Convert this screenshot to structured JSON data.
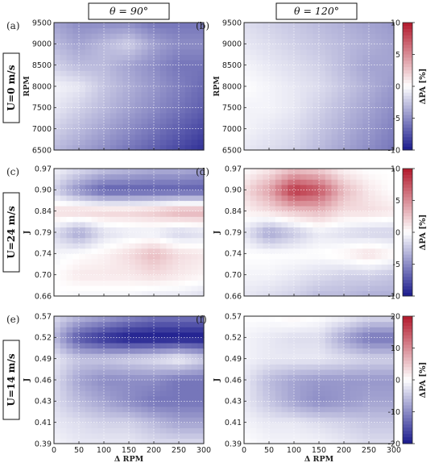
{
  "column_headers": [
    "θ = 90°",
    "θ = 120°"
  ],
  "row_labels": [
    "U=0 m/s",
    "U=24 m/s",
    "U=14 m/s"
  ],
  "xlabel": "Δ RPM",
  "colorbar_label": "ΔPA [%]",
  "colors": {
    "positive": "#b2182b",
    "negative": "#1a1a8c",
    "neutral": "#ffffff"
  },
  "chart_data": [
    {
      "type": "heatmap",
      "panel": "(a)",
      "ylabel": "RPM",
      "x": [
        0,
        50,
        100,
        150,
        200,
        250,
        300
      ],
      "x_ticks": [
        "0",
        "50",
        "100",
        "150",
        "200",
        "250",
        "300"
      ],
      "y": [
        6500,
        7000,
        7500,
        8000,
        8500,
        9000,
        9500
      ],
      "y_ticks": [
        "6500",
        "7000",
        "7500",
        "8000",
        "8500",
        "9000",
        "9500"
      ],
      "colorbar": {
        "min": -10,
        "max": 10,
        "ticks": [
          "10",
          "5",
          "0",
          "-5",
          "-10"
        ],
        "tick_values": [
          10,
          5,
          0,
          -5,
          -10
        ]
      },
      "z": [
        [
          -3,
          -4,
          -5,
          -6,
          -7,
          -8,
          -9
        ],
        [
          -2,
          -3,
          -4,
          -5,
          -6,
          -7,
          -8
        ],
        [
          -1,
          -2,
          -3,
          -4,
          -5,
          -6,
          -7
        ],
        [
          -0.5,
          -1,
          -2.5,
          -3.5,
          -4.5,
          -5.5,
          -6.5
        ],
        [
          -2,
          -3,
          -3,
          -4,
          -5,
          -6,
          -6
        ],
        [
          -3,
          -4,
          -3,
          -2,
          -4,
          -5,
          -5
        ],
        [
          -4,
          -5,
          -5,
          -5,
          -6,
          -6,
          -6
        ]
      ]
    },
    {
      "type": "heatmap",
      "panel": "(b)",
      "ylabel": "RPM",
      "x": [
        0,
        50,
        100,
        150,
        200,
        250,
        300
      ],
      "x_ticks": [
        "0",
        "50",
        "100",
        "150",
        "200",
        "250",
        "300"
      ],
      "y": [
        6500,
        7000,
        7500,
        8000,
        8500,
        9000,
        9500
      ],
      "y_ticks": [
        "6500",
        "7000",
        "7500",
        "8000",
        "8500",
        "9000",
        "9500"
      ],
      "colorbar": {
        "min": -10,
        "max": 10,
        "ticks": [
          "10",
          "5",
          "0",
          "-5",
          "-10"
        ],
        "tick_values": [
          10,
          5,
          0,
          -5,
          -10
        ]
      },
      "z": [
        [
          -1,
          -1.5,
          -2,
          -3,
          -4,
          -5,
          -6
        ],
        [
          -0.5,
          -1,
          -1.5,
          -2.5,
          -3.5,
          -4.5,
          -5.5
        ],
        [
          -0.5,
          -0.5,
          -1,
          -2,
          -3,
          -4,
          -5
        ],
        [
          0,
          -0.5,
          -1,
          -1.5,
          -2.5,
          -3.5,
          -4.5
        ],
        [
          -0.5,
          -1,
          -1.5,
          -2,
          -3,
          -4,
          -4
        ],
        [
          -1,
          -1.5,
          -2,
          -2.5,
          -3,
          -3.5,
          -4
        ],
        [
          -1.5,
          -2,
          -2.5,
          -3,
          -3.5,
          -4,
          -4.5
        ]
      ]
    },
    {
      "type": "heatmap",
      "panel": "(c)",
      "ylabel": "J",
      "x": [
        0,
        50,
        100,
        150,
        200,
        250,
        300
      ],
      "x_ticks": [
        "0",
        "50",
        "100",
        "150",
        "200",
        "250",
        "300"
      ],
      "y": [
        0.66,
        0.7,
        0.74,
        0.79,
        0.84,
        0.9,
        0.97
      ],
      "y_ticks": [
        "0.66",
        "0.70",
        "0.74",
        "0.79",
        "0.84",
        "0.90",
        "0.97"
      ],
      "colorbar": {
        "min": -10,
        "max": 10,
        "ticks": [
          "10",
          "5",
          "0",
          "-5",
          "-10"
        ],
        "tick_values": [
          10,
          5,
          0,
          -5,
          -10
        ]
      },
      "z": [
        [
          0,
          -0.5,
          -0.5,
          -0.5,
          -1,
          -1,
          -1.5
        ],
        [
          0,
          1,
          1,
          1,
          1.5,
          1,
          0.5
        ],
        [
          -0.5,
          0,
          0.5,
          1.5,
          3,
          1.5,
          1
        ],
        [
          -1.5,
          -4,
          -1.5,
          -1,
          -1,
          -2,
          -1.5
        ],
        [
          1.5,
          2,
          2,
          2,
          2.5,
          3.5,
          3.5
        ],
        [
          -2,
          -5,
          -7,
          -7,
          -7,
          -7,
          -7
        ],
        [
          -0.5,
          -1.5,
          -2.5,
          -3,
          -3.5,
          -3.5,
          -4
        ]
      ]
    },
    {
      "type": "heatmap",
      "panel": "(d)",
      "ylabel": "J",
      "x": [
        0,
        50,
        100,
        150,
        200,
        250,
        300
      ],
      "x_ticks": [
        "0",
        "50",
        "100",
        "150",
        "200",
        "250",
        "300"
      ],
      "y": [
        0.66,
        0.7,
        0.74,
        0.79,
        0.84,
        0.9,
        0.97
      ],
      "y_ticks": [
        "0.66",
        "0.70",
        "0.74",
        "0.79",
        "0.84",
        "0.90",
        "0.97"
      ],
      "colorbar": {
        "min": -10,
        "max": 10,
        "ticks": [
          "10",
          "5",
          "0",
          "-5",
          "-10"
        ],
        "tick_values": [
          10,
          5,
          0,
          -5,
          -10
        ]
      },
      "z": [
        [
          -1,
          -1.5,
          -2,
          -3,
          -3,
          -3.5,
          -3.5
        ],
        [
          -0.5,
          -0.5,
          -1,
          -1.5,
          -2,
          -2,
          -2.5
        ],
        [
          0,
          0,
          0,
          0,
          0.5,
          1.5,
          0.5
        ],
        [
          -1,
          -4,
          -2.5,
          -1,
          -1.5,
          -2,
          -2
        ],
        [
          0.5,
          1.5,
          2.5,
          3,
          1.5,
          1.5,
          1
        ],
        [
          1.5,
          4,
          9,
          7.5,
          3,
          1,
          0
        ],
        [
          0,
          1,
          2.5,
          2,
          0.5,
          0,
          0
        ]
      ]
    },
    {
      "type": "heatmap",
      "panel": "(e)",
      "ylabel": "J",
      "x": [
        0,
        50,
        100,
        150,
        200,
        250,
        300
      ],
      "x_ticks": [
        "0",
        "50",
        "100",
        "150",
        "200",
        "250",
        "300"
      ],
      "y": [
        0.39,
        0.41,
        0.43,
        0.46,
        0.49,
        0.52,
        0.57
      ],
      "y_ticks": [
        "0.39",
        "0.41",
        "0.43",
        "0.46",
        "0.49",
        "0.52",
        "0.57"
      ],
      "colorbar": {
        "min": -20,
        "max": 20,
        "ticks": [
          "20",
          "10",
          "0",
          "-10",
          "-20"
        ],
        "tick_values": [
          20,
          10,
          0,
          -10,
          -20
        ]
      },
      "z": [
        [
          -1,
          -2,
          -2,
          -2,
          -3,
          -3,
          -3
        ],
        [
          -2,
          -3,
          -4,
          -4,
          -6,
          -8,
          -8
        ],
        [
          -3,
          -6,
          -8,
          -10,
          -12,
          -12,
          -12
        ],
        [
          -3,
          -8,
          -10,
          -10,
          -10,
          -12,
          -12
        ],
        [
          -2,
          -5,
          -5,
          -4,
          -3,
          -1,
          -4
        ],
        [
          -6,
          -15,
          -18,
          -20,
          -20,
          -20,
          -20
        ],
        [
          -3,
          -6,
          -8,
          -10,
          -12,
          -12,
          -12
        ]
      ]
    },
    {
      "type": "heatmap",
      "panel": "(f)",
      "ylabel": "J",
      "x": [
        0,
        50,
        100,
        150,
        200,
        250,
        300
      ],
      "x_ticks": [
        "0",
        "50",
        "100",
        "150",
        "200",
        "250",
        "300"
      ],
      "y": [
        0.39,
        0.41,
        0.43,
        0.46,
        0.49,
        0.52,
        0.57
      ],
      "y_ticks": [
        "0.39",
        "0.41",
        "0.43",
        "0.46",
        "0.49",
        "0.52",
        "0.57"
      ],
      "colorbar": {
        "min": -20,
        "max": 20,
        "ticks": [
          "20",
          "10",
          "0",
          "-10",
          "-20"
        ],
        "tick_values": [
          20,
          10,
          0,
          -10,
          -20
        ]
      },
      "z": [
        [
          0,
          -1,
          -1,
          -1,
          -2,
          -3,
          -3
        ],
        [
          -1,
          -2,
          -2,
          -3,
          -4,
          -5,
          -5
        ],
        [
          -2,
          -5,
          -8,
          -10,
          -9,
          -8,
          -8
        ],
        [
          -2,
          -6,
          -8,
          -9,
          -9,
          -9,
          -9
        ],
        [
          -1,
          -2,
          -2,
          -2,
          -3,
          -4,
          -4
        ],
        [
          -1,
          -2,
          -3,
          -3,
          -8,
          -12,
          -12
        ],
        [
          0,
          0,
          1,
          0,
          -1,
          -3,
          -3
        ]
      ]
    }
  ]
}
